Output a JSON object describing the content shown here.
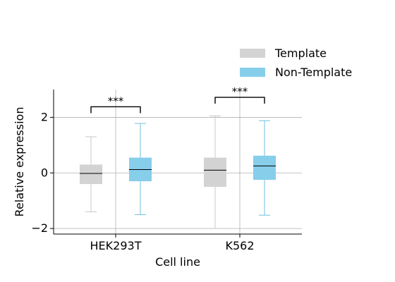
{
  "chart_data": {
    "type": "box",
    "xlabel": "Cell line",
    "ylabel": "Relative expression",
    "ylim": [
      -2.2,
      3.0
    ],
    "yticks": [
      -2,
      0,
      2
    ],
    "ytick_labels": [
      "−2",
      "0",
      "2"
    ],
    "grid": "horizontal",
    "legend_position": "top-right",
    "categories": [
      "HEK293T",
      "K562"
    ],
    "series": [
      {
        "name": "Template",
        "color": "#d3d3d3",
        "boxes": [
          {
            "whisker_low": -1.4,
            "q1": -0.4,
            "median": -0.02,
            "q3": 0.3,
            "whisker_high": 1.3
          },
          {
            "whisker_low": -2.0,
            "q1": -0.5,
            "median": 0.1,
            "q3": 0.55,
            "whisker_high": 2.05
          }
        ]
      },
      {
        "name": "Non-Template",
        "color": "#87ceeb",
        "boxes": [
          {
            "whisker_low": -1.5,
            "q1": -0.3,
            "median": 0.12,
            "q3": 0.55,
            "whisker_high": 1.78
          },
          {
            "whisker_low": -1.52,
            "q1": -0.25,
            "median": 0.25,
            "q3": 0.62,
            "whisker_high": 1.88
          }
        ]
      }
    ],
    "annotations": [
      {
        "category": "HEK293T",
        "text": "***",
        "y": 2.38
      },
      {
        "category": "K562",
        "text": "***",
        "y": 2.72
      }
    ]
  },
  "legend": {
    "items": [
      {
        "label": "Template",
        "color": "#d3d3d3"
      },
      {
        "label": "Non-Template",
        "color": "#87ceeb"
      }
    ]
  }
}
